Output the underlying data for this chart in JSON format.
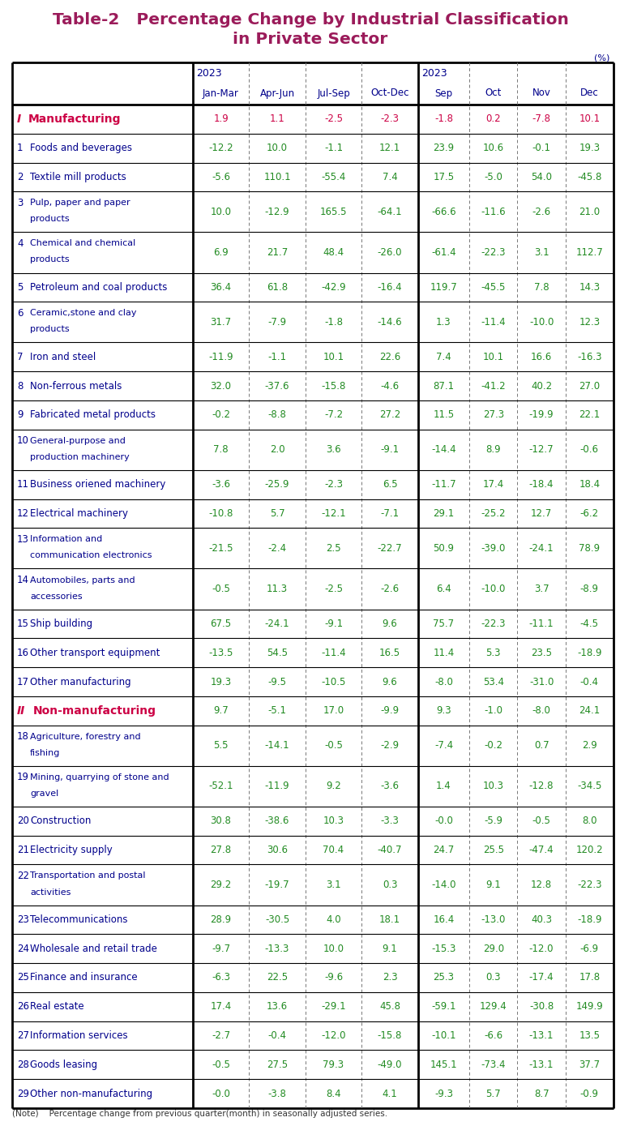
{
  "title_line1": "Table-2   Percentage Change by Industrial Classification",
  "title_line2": "in Private Sector",
  "title_color": "#9B1B5A",
  "unit_label": "(%)",
  "rows": [
    {
      "label": "I",
      "label2": "Manufacturing",
      "type": "category1",
      "vals": [
        "1.9",
        "1.1",
        "-2.5",
        "-2.3",
        "-1.8",
        "0.2",
        "-7.8",
        "10.1"
      ]
    },
    {
      "label": "1",
      "label2": "Foods and beverages",
      "type": "sub",
      "vals": [
        "-12.2",
        "10.0",
        "-1.1",
        "12.1",
        "23.9",
        "10.6",
        "-0.1",
        "19.3"
      ]
    },
    {
      "label": "2",
      "label2": "Textile mill products",
      "type": "sub",
      "vals": [
        "-5.6",
        "110.1",
        "-55.4",
        "7.4",
        "17.5",
        "-5.0",
        "54.0",
        "-45.8"
      ]
    },
    {
      "label": "3",
      "label2": "Pulp, paper and paper\nproducts",
      "type": "sub2",
      "vals": [
        "10.0",
        "-12.9",
        "165.5",
        "-64.1",
        "-66.6",
        "-11.6",
        "-2.6",
        "21.0"
      ]
    },
    {
      "label": "4",
      "label2": "Chemical and chemical\nproducts",
      "type": "sub2",
      "vals": [
        "6.9",
        "21.7",
        "48.4",
        "-26.0",
        "-61.4",
        "-22.3",
        "3.1",
        "112.7"
      ]
    },
    {
      "label": "5",
      "label2": "Petroleum and coal products",
      "type": "sub",
      "vals": [
        "36.4",
        "61.8",
        "-42.9",
        "-16.4",
        "119.7",
        "-45.5",
        "7.8",
        "14.3"
      ]
    },
    {
      "label": "6",
      "label2": "Ceramic,stone and clay\nproducts",
      "type": "sub2",
      "vals": [
        "31.7",
        "-7.9",
        "-1.8",
        "-14.6",
        "1.3",
        "-11.4",
        "-10.0",
        "12.3"
      ]
    },
    {
      "label": "7",
      "label2": "Iron and steel",
      "type": "sub",
      "vals": [
        "-11.9",
        "-1.1",
        "10.1",
        "22.6",
        "7.4",
        "10.1",
        "16.6",
        "-16.3"
      ]
    },
    {
      "label": "8",
      "label2": "Non-ferrous metals",
      "type": "sub",
      "vals": [
        "32.0",
        "-37.6",
        "-15.8",
        "-4.6",
        "87.1",
        "-41.2",
        "40.2",
        "27.0"
      ]
    },
    {
      "label": "9",
      "label2": "Fabricated metal products",
      "type": "sub",
      "vals": [
        "-0.2",
        "-8.8",
        "-7.2",
        "27.2",
        "11.5",
        "27.3",
        "-19.9",
        "22.1"
      ]
    },
    {
      "label": "10",
      "label2": "General-purpose and\nproduction machinery",
      "type": "sub2",
      "vals": [
        "7.8",
        "2.0",
        "3.6",
        "-9.1",
        "-14.4",
        "8.9",
        "-12.7",
        "-0.6"
      ]
    },
    {
      "label": "11",
      "label2": "Business oriened machinery",
      "type": "sub",
      "vals": [
        "-3.6",
        "-25.9",
        "-2.3",
        "6.5",
        "-11.7",
        "17.4",
        "-18.4",
        "18.4"
      ]
    },
    {
      "label": "12",
      "label2": "Electrical machinery",
      "type": "sub",
      "vals": [
        "-10.8",
        "5.7",
        "-12.1",
        "-7.1",
        "29.1",
        "-25.2",
        "12.7",
        "-6.2"
      ]
    },
    {
      "label": "13",
      "label2": "Information and\ncommunication electronics",
      "type": "sub2",
      "vals": [
        "-21.5",
        "-2.4",
        "2.5",
        "-22.7",
        "50.9",
        "-39.0",
        "-24.1",
        "78.9"
      ]
    },
    {
      "label": "14",
      "label2": "Automobiles, parts and\naccessories",
      "type": "sub2",
      "vals": [
        "-0.5",
        "11.3",
        "-2.5",
        "-2.6",
        "6.4",
        "-10.0",
        "3.7",
        "-8.9"
      ]
    },
    {
      "label": "15",
      "label2": "Ship building",
      "type": "sub",
      "vals": [
        "67.5",
        "-24.1",
        "-9.1",
        "9.6",
        "75.7",
        "-22.3",
        "-11.1",
        "-4.5"
      ]
    },
    {
      "label": "16",
      "label2": "Other transport equipment",
      "type": "sub",
      "vals": [
        "-13.5",
        "54.5",
        "-11.4",
        "16.5",
        "11.4",
        "5.3",
        "23.5",
        "-18.9"
      ]
    },
    {
      "label": "17",
      "label2": "Other manufacturing",
      "type": "sub",
      "vals": [
        "19.3",
        "-9.5",
        "-10.5",
        "9.6",
        "-8.0",
        "53.4",
        "-31.0",
        "-0.4"
      ]
    },
    {
      "label": "II",
      "label2": "Non-manufacturing",
      "type": "category2",
      "vals": [
        "9.7",
        "-5.1",
        "17.0",
        "-9.9",
        "9.3",
        "-1.0",
        "-8.0",
        "24.1"
      ]
    },
    {
      "label": "18",
      "label2": "Agriculture, forestry and\nfishing",
      "type": "sub2",
      "vals": [
        "5.5",
        "-14.1",
        "-0.5",
        "-2.9",
        "-7.4",
        "-0.2",
        "0.7",
        "2.9"
      ]
    },
    {
      "label": "19",
      "label2": "Mining, quarrying of stone and\ngravel",
      "type": "sub2",
      "vals": [
        "-52.1",
        "-11.9",
        "9.2",
        "-3.6",
        "1.4",
        "10.3",
        "-12.8",
        "-34.5"
      ]
    },
    {
      "label": "20",
      "label2": "Construction",
      "type": "sub",
      "vals": [
        "30.8",
        "-38.6",
        "10.3",
        "-3.3",
        "-0.0",
        "-5.9",
        "-0.5",
        "8.0"
      ]
    },
    {
      "label": "21",
      "label2": "Electricity supply",
      "type": "sub",
      "vals": [
        "27.8",
        "30.6",
        "70.4",
        "-40.7",
        "24.7",
        "25.5",
        "-47.4",
        "120.2"
      ]
    },
    {
      "label": "22",
      "label2": "Transportation and postal\nactivities",
      "type": "sub2",
      "vals": [
        "29.2",
        "-19.7",
        "3.1",
        "0.3",
        "-14.0",
        "9.1",
        "12.8",
        "-22.3"
      ]
    },
    {
      "label": "23",
      "label2": "Telecommunications",
      "type": "sub",
      "vals": [
        "28.9",
        "-30.5",
        "4.0",
        "18.1",
        "16.4",
        "-13.0",
        "40.3",
        "-18.9"
      ]
    },
    {
      "label": "24",
      "label2": "Wholesale and retail trade",
      "type": "sub",
      "vals": [
        "-9.7",
        "-13.3",
        "10.0",
        "9.1",
        "-15.3",
        "29.0",
        "-12.0",
        "-6.9"
      ]
    },
    {
      "label": "25",
      "label2": "Finance and insurance",
      "type": "sub",
      "vals": [
        "-6.3",
        "22.5",
        "-9.6",
        "2.3",
        "25.3",
        "0.3",
        "-17.4",
        "17.8"
      ]
    },
    {
      "label": "26",
      "label2": "Real estate",
      "type": "sub",
      "vals": [
        "17.4",
        "13.6",
        "-29.1",
        "45.8",
        "-59.1",
        "129.4",
        "-30.8",
        "149.9"
      ]
    },
    {
      "label": "27",
      "label2": "Information services",
      "type": "sub",
      "vals": [
        "-2.7",
        "-0.4",
        "-12.0",
        "-15.8",
        "-10.1",
        "-6.6",
        "-13.1",
        "13.5"
      ]
    },
    {
      "label": "28",
      "label2": "Goods leasing",
      "type": "sub",
      "vals": [
        "-0.5",
        "27.5",
        "79.3",
        "-49.0",
        "145.1",
        "-73.4",
        "-13.1",
        "37.7"
      ]
    },
    {
      "label": "29",
      "label2": "Other non-manufacturing",
      "type": "sub",
      "vals": [
        "-0.0",
        "-3.8",
        "8.4",
        "4.1",
        "-9.3",
        "5.7",
        "8.7",
        "-0.9"
      ]
    }
  ],
  "note": "(Note)    Percentage change from previous quarter(month) in seasonally adjusted series.",
  "header_color": "#00008B",
  "cat1_label_color": "#CC0044",
  "cat2_label_color": "#CC0044",
  "cat1_val_color": "#CC0044",
  "cat2_val_color": "#228B22",
  "sub_label_color": "#00008B",
  "sub_val_color": "#228B22",
  "bg_color": "#FFFFFF"
}
